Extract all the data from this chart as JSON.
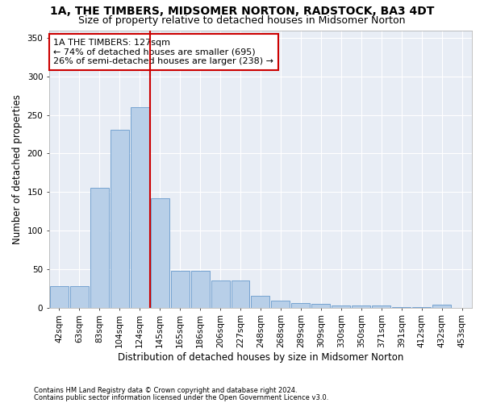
{
  "title": "1A, THE TIMBERS, MIDSOMER NORTON, RADSTOCK, BA3 4DT",
  "subtitle": "Size of property relative to detached houses in Midsomer Norton",
  "xlabel": "Distribution of detached houses by size in Midsomer Norton",
  "ylabel": "Number of detached properties",
  "footnote1": "Contains HM Land Registry data © Crown copyright and database right 2024.",
  "footnote2": "Contains public sector information licensed under the Open Government Licence v3.0.",
  "annotation_line1": "1A THE TIMBERS: 127sqm",
  "annotation_line2": "← 74% of detached houses are smaller (695)",
  "annotation_line3": "26% of semi-detached houses are larger (238) →",
  "categories": [
    "42sqm",
    "63sqm",
    "83sqm",
    "104sqm",
    "124sqm",
    "145sqm",
    "165sqm",
    "186sqm",
    "206sqm",
    "227sqm",
    "248sqm",
    "268sqm",
    "289sqm",
    "309sqm",
    "330sqm",
    "350sqm",
    "371sqm",
    "391sqm",
    "412sqm",
    "432sqm",
    "453sqm"
  ],
  "values": [
    28,
    28,
    155,
    231,
    260,
    142,
    48,
    48,
    35,
    35,
    15,
    9,
    6,
    5,
    3,
    3,
    3,
    1,
    1,
    4,
    0
  ],
  "bar_color": "#b8cfe8",
  "bar_edge_color": "#6699cc",
  "marker_color": "#cc0000",
  "marker_bar_index": 4,
  "background_color": "#e8edf5",
  "annotation_box_edge": "#cc0000",
  "ylim": [
    0,
    360
  ],
  "yticks": [
    0,
    50,
    100,
    150,
    200,
    250,
    300,
    350
  ],
  "title_fontsize": 10,
  "subtitle_fontsize": 9,
  "annotation_fontsize": 8,
  "tick_fontsize": 7.5,
  "xlabel_fontsize": 8.5,
  "ylabel_fontsize": 8.5
}
